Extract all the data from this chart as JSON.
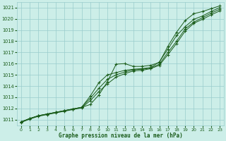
{
  "bg_color": "#cceee8",
  "grid_color": "#99cccc",
  "line_color": "#1a5c1a",
  "xlabel": "Graphe pression niveau de la mer (hPa)",
  "ylim": [
    1010.5,
    1021.5
  ],
  "xlim": [
    -0.5,
    23.5
  ],
  "yticks": [
    1011,
    1012,
    1013,
    1014,
    1015,
    1016,
    1017,
    1018,
    1019,
    1020,
    1021
  ],
  "xticks": [
    0,
    1,
    2,
    3,
    4,
    5,
    6,
    7,
    8,
    9,
    10,
    11,
    12,
    13,
    14,
    15,
    16,
    17,
    18,
    19,
    20,
    21,
    22,
    23
  ],
  "line1": [
    1010.8,
    1011.1,
    1011.35,
    1011.5,
    1011.65,
    1011.8,
    1011.95,
    1012.1,
    1012.35,
    1013.2,
    1014.4,
    1015.95,
    1016.0,
    1015.75,
    1015.75,
    1015.85,
    1016.1,
    1017.55,
    1018.8,
    1019.85,
    1020.45,
    1020.65,
    1020.9,
    1021.15
  ],
  "line2": [
    1010.8,
    1011.1,
    1011.35,
    1011.5,
    1011.65,
    1011.8,
    1011.95,
    1012.1,
    1013.1,
    1014.3,
    1015.0,
    1015.2,
    1015.4,
    1015.5,
    1015.55,
    1015.65,
    1016.15,
    1017.3,
    1018.5,
    1019.3,
    1019.95,
    1020.25,
    1020.65,
    1021.0
  ],
  "line3": [
    1010.8,
    1011.1,
    1011.35,
    1011.5,
    1011.65,
    1011.8,
    1011.95,
    1012.1,
    1012.9,
    1013.8,
    1014.6,
    1015.0,
    1015.25,
    1015.45,
    1015.5,
    1015.6,
    1015.95,
    1017.0,
    1018.0,
    1019.1,
    1019.7,
    1020.1,
    1020.5,
    1020.85
  ],
  "line4": [
    1010.75,
    1011.05,
    1011.3,
    1011.45,
    1011.6,
    1011.75,
    1011.9,
    1012.05,
    1012.7,
    1013.5,
    1014.2,
    1014.8,
    1015.1,
    1015.35,
    1015.4,
    1015.55,
    1015.85,
    1016.8,
    1017.8,
    1018.9,
    1019.6,
    1019.95,
    1020.35,
    1020.7
  ]
}
